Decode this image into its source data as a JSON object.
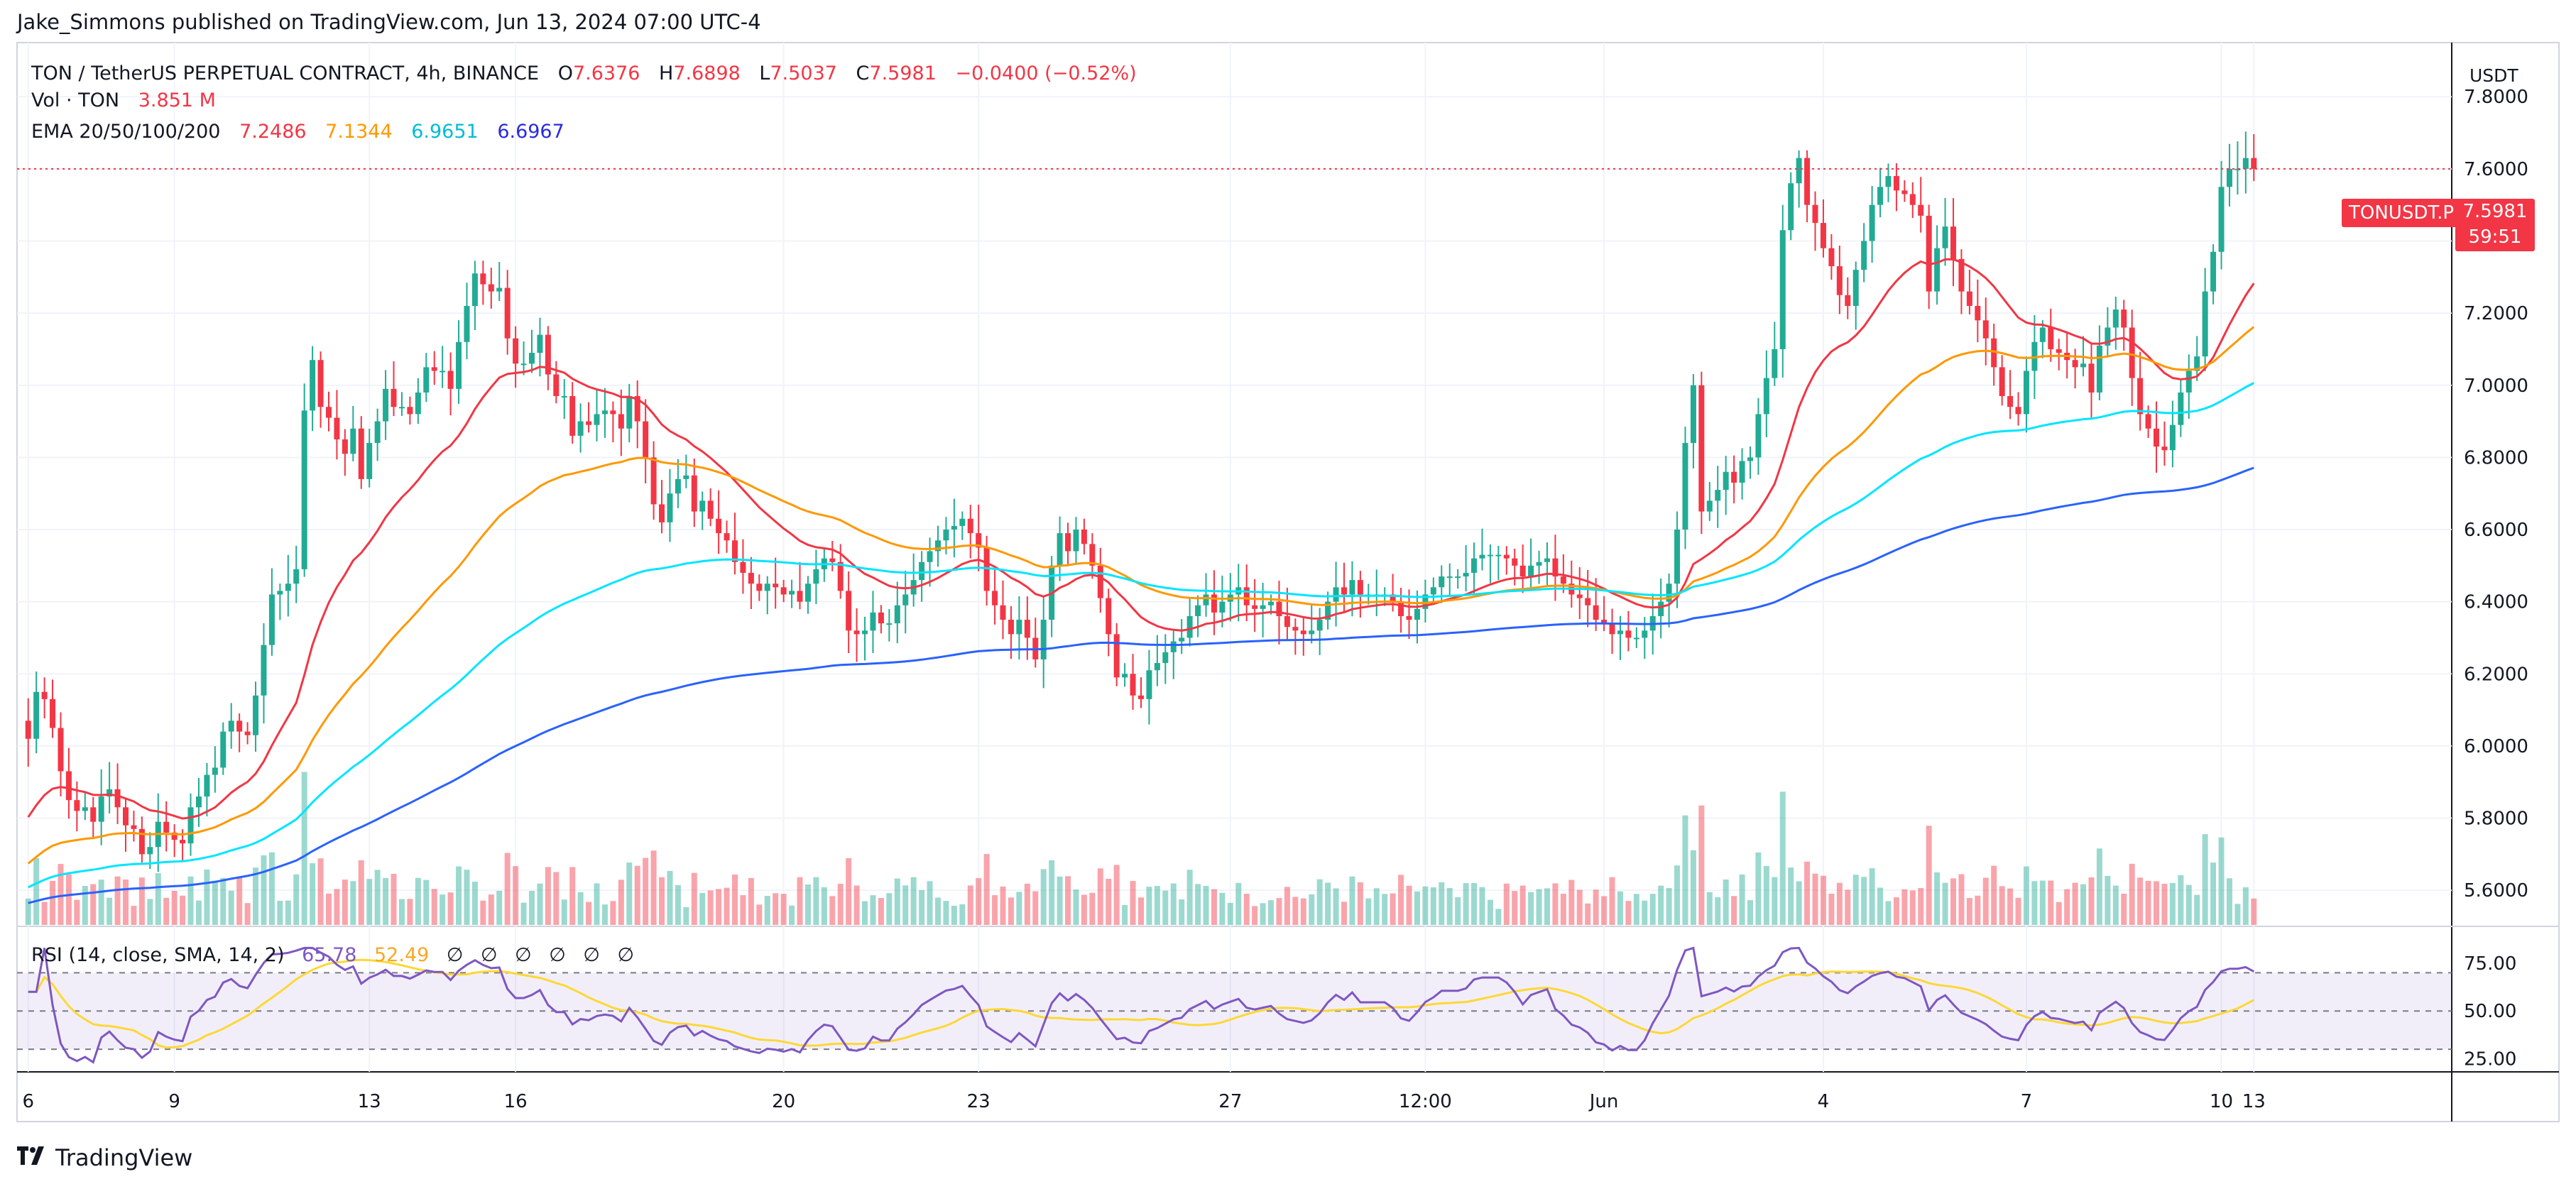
{
  "topline": "Jake_Simmons published on TradingView.com, Jun 13, 2024 07:00 UTC-4",
  "legend": {
    "symbol": "TON / TetherUS PERPETUAL CONTRACT, 4h, BINANCE",
    "o_label": "O",
    "o_value": "7.6376",
    "h_label": "H",
    "h_value": "7.6898",
    "l_label": "L",
    "l_value": "7.5037",
    "c_label": "C",
    "c_value": "7.5981",
    "change": "−0.0400 (−0.52%)",
    "vol_label": "Vol · TON",
    "vol_value": "3.851 M",
    "ema_label": "EMA 20/50/100/200",
    "ema20": "7.2486",
    "ema50": "7.1344",
    "ema100": "6.9651",
    "ema200": "6.6967"
  },
  "rsi_legend": {
    "label": "RSI (14, close, SMA, 14, 2)",
    "rsi": "65.78",
    "sma": "52.49",
    "empty_sym": "∅"
  },
  "currency": "USDT",
  "price_tag": "TONUSDT.P",
  "price_value": "7.5981",
  "countdown": "59:51",
  "brand": "TradingView",
  "colors": {
    "up": "#22ab94",
    "down": "#f23645",
    "ema20": "#f23645",
    "ema50": "#ff9800",
    "ema100": "#00e5ff",
    "ema200": "#2962ff",
    "rsi": "#7e57c2",
    "rsi_sma": "#fdd835"
  },
  "chart_data": {
    "type": "candlestick",
    "title": "TON / TetherUS PERPETUAL CONTRACT, 4h, BINANCE",
    "y_ticks": [
      "7.8000",
      "7.6000",
      "7.4000",
      "7.2000",
      "7.0000",
      "6.8000",
      "6.6000",
      "6.4000",
      "6.2000",
      "6.0000",
      "5.8000",
      "5.6000"
    ],
    "ylim": [
      5.5,
      7.95
    ],
    "x_ticks": [
      "6",
      "9",
      "13",
      "16",
      "20",
      "23",
      "27",
      "12:00",
      "Jun",
      "4",
      "7",
      "10",
      "13"
    ],
    "rsi_ticks": [
      "75.00",
      "50.00",
      "25.00"
    ],
    "rsi_range": [
      30,
      70
    ],
    "close": [
      6.02,
      6.15,
      6.13,
      6.05,
      5.93,
      5.85,
      5.82,
      5.83,
      5.79,
      5.86,
      5.88,
      5.83,
      5.78,
      5.77,
      5.7,
      5.72,
      5.79,
      5.76,
      5.74,
      5.73,
      5.83,
      5.86,
      5.92,
      5.94,
      6.04,
      6.07,
      6.04,
      6.03,
      6.14,
      6.28,
      6.42,
      6.43,
      6.45,
      6.49,
      6.93,
      7.07,
      6.94,
      6.91,
      6.85,
      6.81,
      6.88,
      6.74,
      6.84,
      6.9,
      6.99,
      6.94,
      6.94,
      6.92,
      6.98,
      7.05,
      7.04,
      7.04,
      6.99,
      7.12,
      7.22,
      7.31,
      7.28,
      7.26,
      7.27,
      7.13,
      7.06,
      7.06,
      7.09,
      7.14,
      7.03,
      6.97,
      6.97,
      6.86,
      6.9,
      6.89,
      6.92,
      6.93,
      6.92,
      6.88,
      6.97,
      6.9,
      6.8,
      6.67,
      6.62,
      6.7,
      6.74,
      6.75,
      6.65,
      6.68,
      6.63,
      6.59,
      6.57,
      6.51,
      6.48,
      6.45,
      6.43,
      6.45,
      6.44,
      6.42,
      6.43,
      6.4,
      6.45,
      6.49,
      6.52,
      6.51,
      6.43,
      6.32,
      6.31,
      6.32,
      6.37,
      6.34,
      6.34,
      6.39,
      6.42,
      6.46,
      6.51,
      6.54,
      6.57,
      6.6,
      6.61,
      6.63,
      6.59,
      6.55,
      6.43,
      6.39,
      6.35,
      6.31,
      6.35,
      6.3,
      6.24,
      6.35,
      6.5,
      6.59,
      6.54,
      6.6,
      6.56,
      6.5,
      6.41,
      6.31,
      6.19,
      6.2,
      6.14,
      6.13,
      6.21,
      6.23,
      6.26,
      6.29,
      6.3,
      6.36,
      6.39,
      6.42,
      6.37,
      6.4,
      6.42,
      6.44,
      6.39,
      6.38,
      6.39,
      6.4,
      6.36,
      6.33,
      6.32,
      6.31,
      6.32,
      6.35,
      6.4,
      6.44,
      6.42,
      6.46,
      6.42,
      6.42,
      6.42,
      6.42,
      6.4,
      6.36,
      6.35,
      6.38,
      6.42,
      6.44,
      6.47,
      6.47,
      6.47,
      6.48,
      6.52,
      6.53,
      6.53,
      6.53,
      6.52,
      6.5,
      6.47,
      6.5,
      6.51,
      6.52,
      6.47,
      6.45,
      6.42,
      6.41,
      6.39,
      6.35,
      6.34,
      6.31,
      6.32,
      6.3,
      6.3,
      6.32,
      6.36,
      6.4,
      6.45,
      6.6,
      6.84,
      7.0,
      6.65,
      6.68,
      6.71,
      6.76,
      6.73,
      6.79,
      6.8,
      6.92,
      7.02,
      7.1,
      7.43,
      7.56,
      7.63,
      7.5,
      7.45,
      7.38,
      7.33,
      7.25,
      7.22,
      7.32,
      7.4,
      7.5,
      7.55,
      7.58,
      7.54,
      7.53,
      7.5,
      7.47,
      7.26,
      7.38,
      7.44,
      7.35,
      7.26,
      7.22,
      7.18,
      7.13,
      7.05,
      6.97,
      6.94,
      6.92,
      7.04,
      7.12,
      7.16,
      7.1,
      7.09,
      7.07,
      7.05,
      7.06,
      6.98,
      7.11,
      7.16,
      7.21,
      7.16,
      7.02,
      6.92,
      6.88,
      6.83,
      6.82,
      6.89,
      6.98,
      7.04,
      7.08,
      7.26,
      7.37,
      7.55,
      7.6,
      7.6,
      7.63,
      7.6
    ],
    "ema20_last": 7.2486,
    "ema50_last": 7.1344,
    "ema100_last": 6.9651,
    "ema200_last": 6.6967,
    "rsi_last": 65.78,
    "rsi_sma_last": 52.49,
    "volume_last": "3.851 M"
  }
}
